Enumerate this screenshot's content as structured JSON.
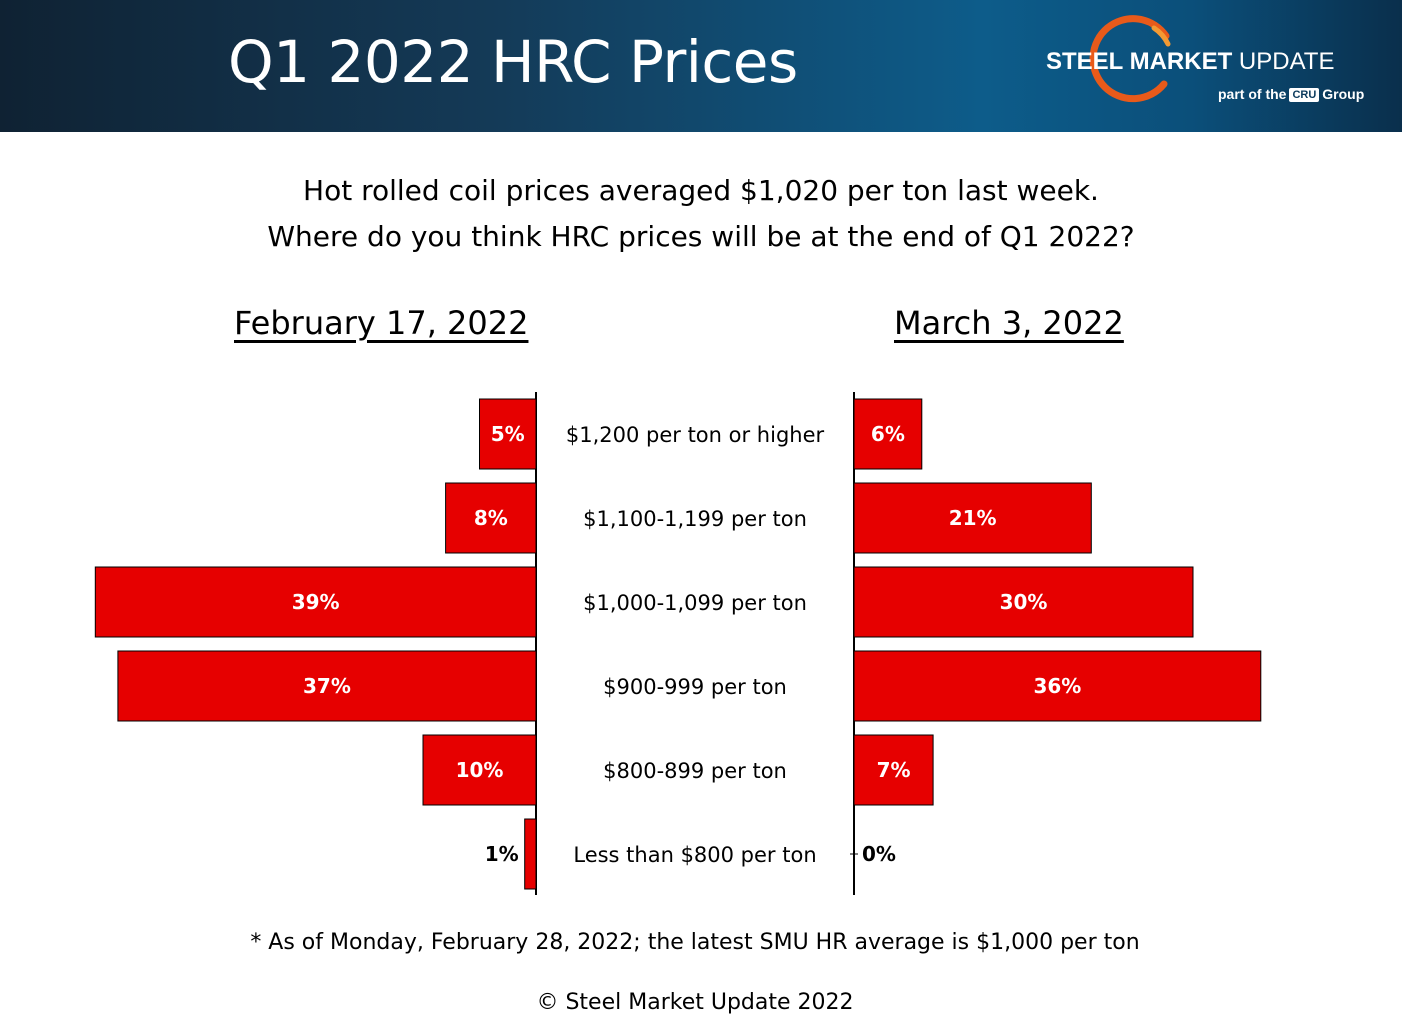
{
  "header": {
    "title": "Q1 2022 HRC Prices",
    "logo_brand_bold": "STEEL MARKET",
    "logo_brand_light": "UPDATE",
    "logo_sub_pre": "part of the",
    "logo_sub_badge": "CRU",
    "logo_sub_post": "Group"
  },
  "question": {
    "line1": "Hot rolled coil prices averaged $1,020 per ton last week.",
    "line2": "Where do you think HRC prices will be at the end of Q1 2022?"
  },
  "chart_data": {
    "type": "bar",
    "orientation": "horizontal-butterfly",
    "categories": [
      "$1,200 per ton or higher",
      "$1,100-1,199 per ton",
      "$1,000-1,099 per ton",
      "$900-999 per ton",
      "$800-899 per ton",
      "Less than $800 per ton"
    ],
    "series": [
      {
        "name": "February 17, 2022",
        "values": [
          5,
          8,
          39,
          37,
          10,
          1
        ],
        "labels": [
          "5%",
          "8%",
          "39%",
          "37%",
          "10%",
          "1%"
        ]
      },
      {
        "name": "March 3, 2022",
        "values": [
          6,
          21,
          30,
          36,
          7,
          0
        ],
        "labels": [
          "6%",
          "21%",
          "30%",
          "36%",
          "7%",
          "0%"
        ]
      }
    ],
    "unit": "%",
    "bar_color": "#e60000",
    "grid": false
  },
  "footnote": "* As of Monday, February 28, 2022; the latest SMU HR average is $1,000 per ton",
  "copyright": "© Steel Market Update 2022"
}
